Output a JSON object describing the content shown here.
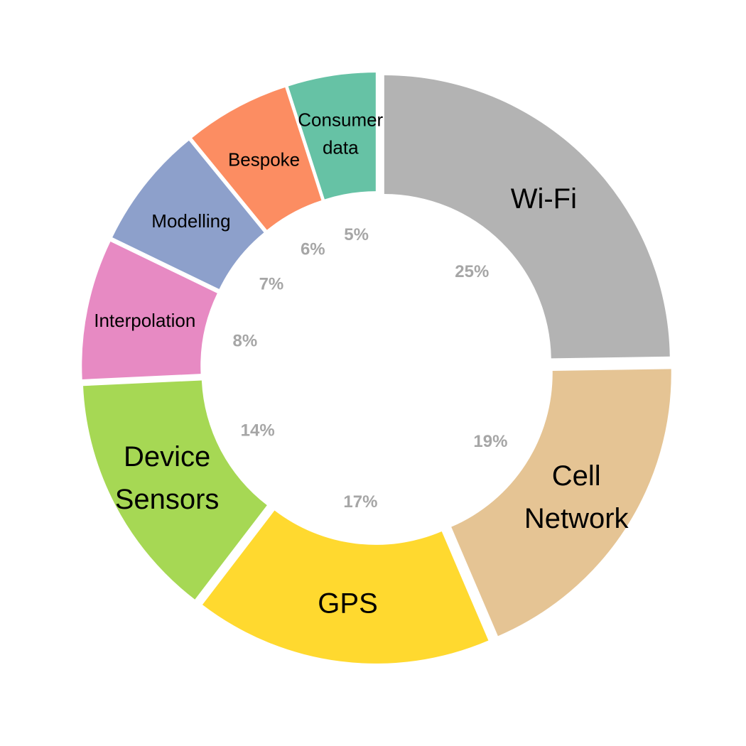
{
  "chart_data": {
    "type": "pie",
    "subtype": "donut",
    "slices": [
      {
        "label": "Wi-Fi",
        "value": 25,
        "pct_label": "25%",
        "color": "#b3b3b3"
      },
      {
        "label": "Cell Network",
        "value": 19,
        "pct_label": "19%",
        "color": "#e5c494"
      },
      {
        "label": "GPS",
        "value": 17,
        "pct_label": "17%",
        "color": "#ffd92f"
      },
      {
        "label": "Device Sensors",
        "value": 14,
        "pct_label": "14%",
        "color": "#a6d854"
      },
      {
        "label": "Interpolation",
        "value": 8,
        "pct_label": "8%",
        "color": "#e78ac3"
      },
      {
        "label": "Modelling",
        "value": 7,
        "pct_label": "7%",
        "color": "#8da0cb"
      },
      {
        "label": "Bespoke",
        "value": 6,
        "pct_label": "6%",
        "color": "#fc8d62"
      },
      {
        "label": "Consumer data",
        "value": 5,
        "pct_label": "5%",
        "color": "#66c2a5"
      }
    ],
    "start": "top",
    "direction": "clockwise",
    "exploded": true,
    "legend": "none",
    "pct_label_color": "#a6a6a6"
  }
}
